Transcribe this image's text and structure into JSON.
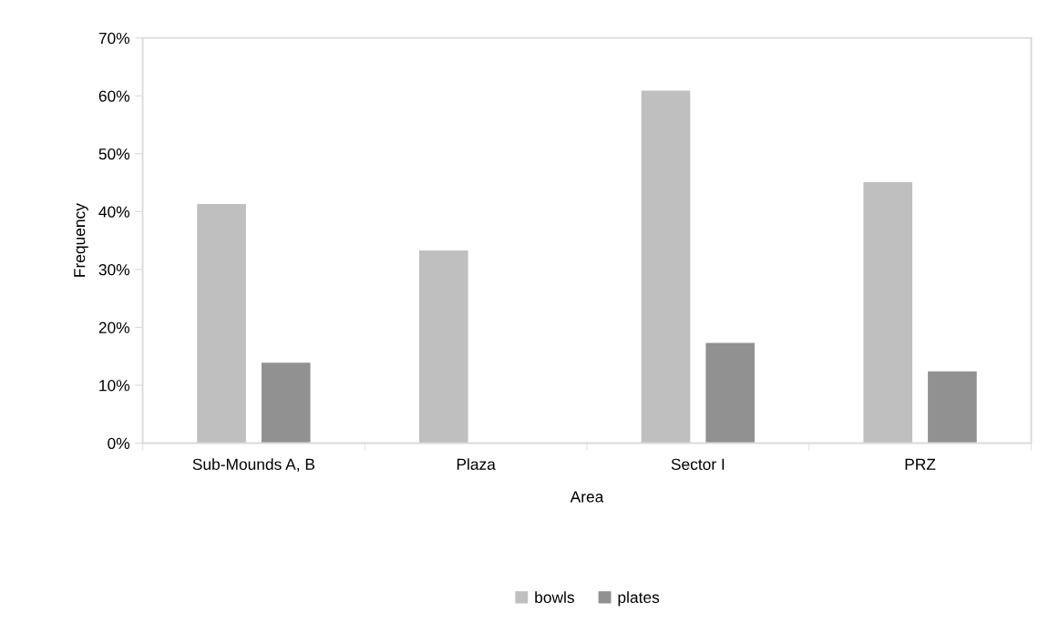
{
  "chart_data": {
    "type": "bar",
    "xlabel": "Area",
    "ylabel": "Frequency",
    "categories": [
      "Sub-Mounds A, B",
      "Plaza",
      "Sector I",
      "PRZ"
    ],
    "series": [
      {
        "name": "bowls",
        "color": "#bfbfbf",
        "values": [
          41.3,
          33.3,
          60.9,
          45.1
        ]
      },
      {
        "name": "plates",
        "color": "#919191",
        "values": [
          13.9,
          0,
          17.3,
          12.4
        ]
      }
    ],
    "ylim": [
      0,
      70
    ],
    "yticks": [
      {
        "value": 0,
        "label": "0%"
      },
      {
        "value": 10,
        "label": "10%"
      },
      {
        "value": 20,
        "label": "20%"
      },
      {
        "value": 30,
        "label": "30%"
      },
      {
        "value": 40,
        "label": "40%"
      },
      {
        "value": 50,
        "label": "50%"
      },
      {
        "value": 60,
        "label": "60%"
      },
      {
        "value": 70,
        "label": "70%"
      }
    ],
    "grid": false,
    "legend": "bottom"
  }
}
